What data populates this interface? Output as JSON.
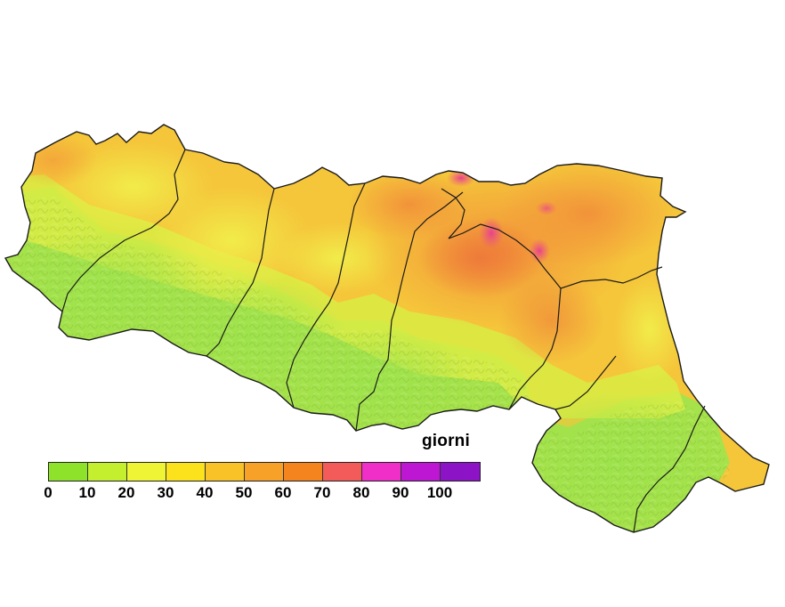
{
  "map": {
    "unit_label": "giorni",
    "colors": {
      "low": "#9be64a",
      "mid": "#f5c836",
      "high": "#f09a32",
      "peak": "#e9508a"
    }
  },
  "legend": {
    "classes": [
      {
        "range": [
          0,
          10
        ],
        "color": "#8ee32a"
      },
      {
        "range": [
          10,
          20
        ],
        "color": "#c3ef2e"
      },
      {
        "range": [
          20,
          30
        ],
        "color": "#eff534"
      },
      {
        "range": [
          30,
          40
        ],
        "color": "#fbe21d"
      },
      {
        "range": [
          40,
          50
        ],
        "color": "#f9c226"
      },
      {
        "range": [
          50,
          60
        ],
        "color": "#f7a128"
      },
      {
        "range": [
          60,
          70
        ],
        "color": "#f4841d"
      },
      {
        "range": [
          70,
          80
        ],
        "color": "#f35a5a"
      },
      {
        "range": [
          80,
          90
        ],
        "color": "#ef2fc8"
      },
      {
        "range": [
          90,
          100
        ],
        "color": "#bd17d3"
      },
      {
        "range": [
          100,
          110
        ],
        "color": "#8d13c7"
      }
    ],
    "ticks": [
      "0",
      "10",
      "20",
      "30",
      "40",
      "50",
      "60",
      "70",
      "80",
      "90",
      "100"
    ]
  }
}
